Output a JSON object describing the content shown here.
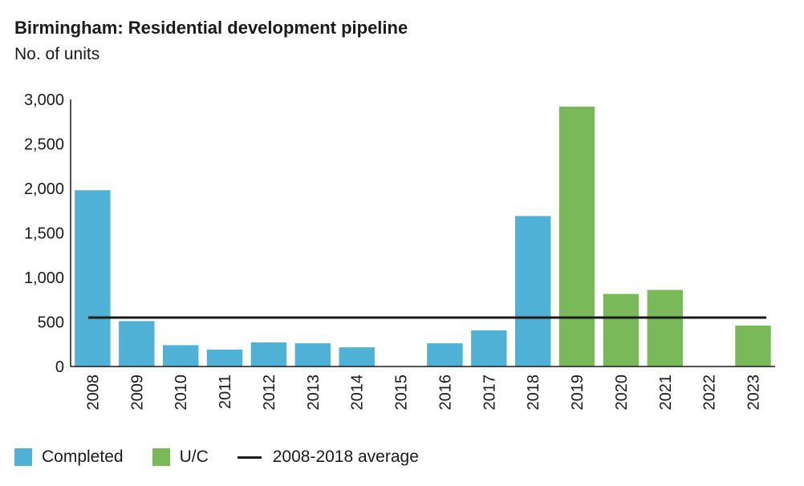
{
  "title": "Birmingham: Residential development pipeline",
  "subtitle": "No. of units",
  "colors": {
    "completed": "#4fb1d6",
    "uc": "#79b95a",
    "average": "#1a1a1a",
    "axis": "#1a1a1a"
  },
  "legend": {
    "completed": "Completed",
    "uc": "U/C",
    "average": "2008-2018 average"
  },
  "chart_data": {
    "type": "bar",
    "title": "Birmingham: Residential development pipeline",
    "ylabel": "No. of units",
    "xlabel": "",
    "ylim": [
      0,
      3000
    ],
    "yticks": [
      0,
      500,
      1000,
      1500,
      2000,
      2500,
      3000
    ],
    "ytick_labels": [
      "0",
      "500",
      "1,000",
      "1,500",
      "2,000",
      "2,500",
      "3,000"
    ],
    "categories": [
      "2008",
      "2009",
      "2010",
      "2011",
      "2012",
      "2013",
      "2014",
      "2015",
      "2016",
      "2017",
      "2018",
      "2019",
      "2020",
      "2021",
      "2022",
      "2023"
    ],
    "series": [
      {
        "name": "Completed",
        "color": "#4fb1d6",
        "values": [
          1980,
          510,
          240,
          190,
          270,
          260,
          215,
          0,
          260,
          405,
          1690,
          null,
          null,
          null,
          null,
          null
        ]
      },
      {
        "name": "U/C",
        "color": "#79b95a",
        "values": [
          null,
          null,
          null,
          null,
          null,
          null,
          null,
          null,
          null,
          null,
          null,
          2920,
          815,
          860,
          0,
          460
        ]
      }
    ],
    "reference_lines": [
      {
        "name": "2008-2018 average",
        "value": 550
      }
    ],
    "grid": false,
    "legend_position": "bottom-left"
  }
}
